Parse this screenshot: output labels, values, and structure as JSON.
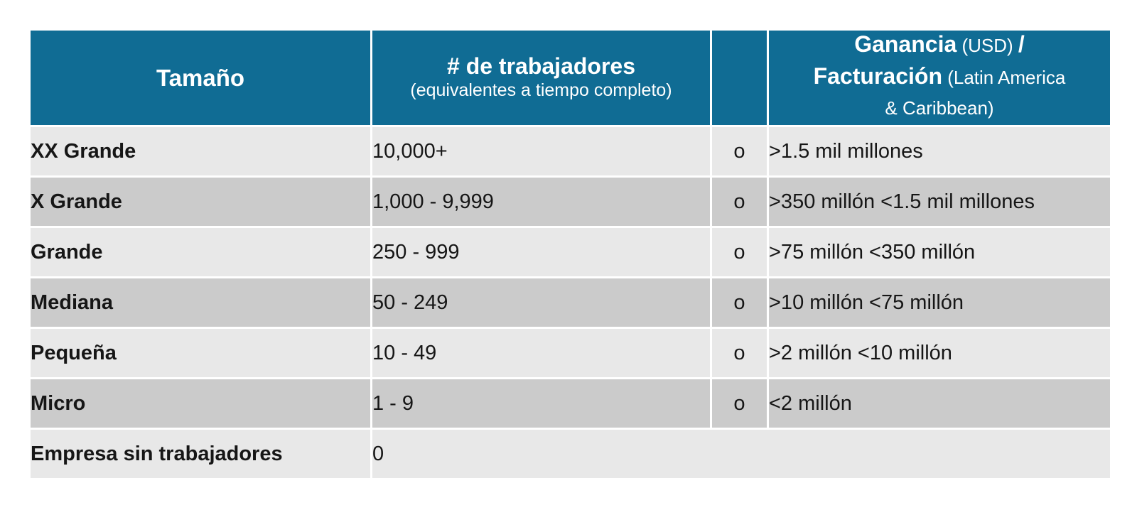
{
  "table": {
    "header": {
      "col1": "Tamaño",
      "col2_main": "# de trabajadores",
      "col2_sub": "(equivalentes a tiempo completo)",
      "col3": "",
      "col4_lines": [
        {
          "segments": [
            {
              "text": "Ganancia",
              "bold": true
            },
            {
              "text": " (USD) ",
              "bold": false
            },
            {
              "text": "/",
              "bold": true
            }
          ]
        },
        {
          "segments": [
            {
              "text": "Facturación",
              "bold": true
            },
            {
              "text": " (Latin America",
              "bold": false
            }
          ]
        },
        {
          "segments": [
            {
              "text": "& Caribbean)",
              "bold": false
            }
          ]
        }
      ]
    },
    "rows": [
      {
        "size": "XX Grande",
        "workers": "10,000+",
        "connector": "o",
        "revenue": ">1.5 mil millones",
        "merged": false
      },
      {
        "size": "X Grande",
        "workers": "1,000 - 9,999",
        "connector": "o",
        "revenue": ">350 millón <1.5 mil millones",
        "merged": false
      },
      {
        "size": "Grande",
        "workers": "250 - 999",
        "connector": "o",
        "revenue": ">75 millón <350 millón",
        "merged": false
      },
      {
        "size": "Mediana",
        "workers": "50 - 249",
        "connector": "o",
        "revenue": ">10 millón <75 millón",
        "merged": false
      },
      {
        "size": "Pequeña",
        "workers": "10 - 49",
        "connector": "o",
        "revenue": ">2 millón <10 millón",
        "merged": false
      },
      {
        "size": "Micro",
        "workers": "1 - 9",
        "connector": "o",
        "revenue": "<2 millón",
        "merged": false
      },
      {
        "size": "Empresa sin trabajadores",
        "workers": "0",
        "connector": "",
        "revenue": "",
        "merged": true
      }
    ],
    "colors": {
      "header_bg": "#106c94",
      "row_light": "#e8e8e8",
      "row_dark": "#cbcbcb",
      "divider": "#ffffff",
      "header_text": "#ffffff",
      "body_text": "#161616"
    }
  },
  "chart_data": {
    "type": "table",
    "title": "",
    "columns": [
      "Tamaño",
      "# de trabajadores (equivalentes a tiempo completo)",
      "",
      "Ganancia (USD) / Facturación (Latin America & Caribbean)"
    ],
    "rows": [
      [
        "XX Grande",
        "10,000+",
        "o",
        ">1.5 mil millones"
      ],
      [
        "X Grande",
        "1,000 - 9,999",
        "o",
        ">350 millón <1.5 mil millones"
      ],
      [
        "Grande",
        "250 - 999",
        "o",
        ">75 millón <350 millón"
      ],
      [
        "Mediana",
        "50 - 249",
        "o",
        ">10 millón <75 millón"
      ],
      [
        "Pequeña",
        "10 - 49",
        "o",
        ">2 millón <10 millón"
      ],
      [
        "Micro",
        "1 - 9",
        "o",
        "<2 millón"
      ],
      [
        "Empresa sin trabajadores",
        "0",
        "",
        ""
      ]
    ],
    "layout": {
      "row_striping": [
        "light",
        "dark"
      ],
      "header_background": "#106c94",
      "last_row_merged_columns": [
        2,
        3,
        4
      ]
    }
  }
}
